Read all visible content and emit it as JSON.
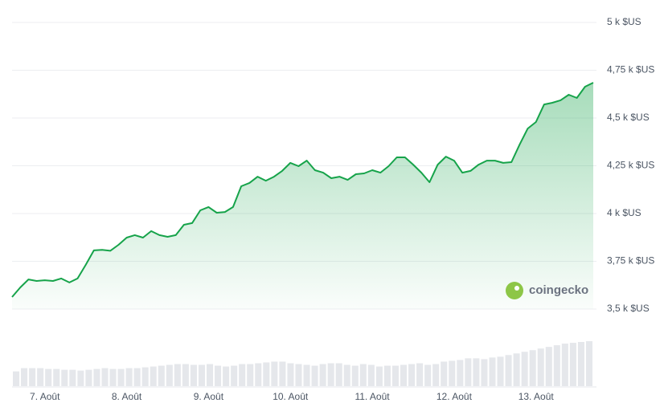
{
  "chart_data": [
    {
      "type": "line",
      "watermark": "coingecko",
      "color": "#16a34a",
      "grid": true,
      "x": [
        6.6,
        6.7,
        6.8,
        6.9,
        7.0,
        7.1,
        7.2,
        7.3,
        7.4,
        7.5,
        7.6,
        7.7,
        7.8,
        7.9,
        8.0,
        8.1,
        8.2,
        8.3,
        8.4,
        8.5,
        8.6,
        8.7,
        8.8,
        8.9,
        9.0,
        9.1,
        9.2,
        9.3,
        9.4,
        9.5,
        9.6,
        9.7,
        9.8,
        9.9,
        10.0,
        10.1,
        10.2,
        10.3,
        10.4,
        10.5,
        10.6,
        10.7,
        10.8,
        10.9,
        11.0,
        11.1,
        11.2,
        11.3,
        11.4,
        11.5,
        11.6,
        11.7,
        11.8,
        11.9,
        12.0,
        12.1,
        12.2,
        12.3,
        12.4,
        12.5,
        12.6,
        12.7,
        12.8,
        12.9,
        13.0,
        13.1,
        13.2,
        13.3,
        13.4,
        13.5,
        13.6,
        13.7
      ],
      "values": [
        3563,
        3613,
        3655,
        3647,
        3651,
        3647,
        3660,
        3639,
        3660,
        3731,
        3807,
        3810,
        3805,
        3836,
        3874,
        3887,
        3874,
        3908,
        3887,
        3878,
        3887,
        3941,
        3950,
        4017,
        4034,
        4004,
        4008,
        4034,
        4143,
        4160,
        4193,
        4172,
        4193,
        4223,
        4265,
        4248,
        4277,
        4227,
        4214,
        4185,
        4193,
        4176,
        4206,
        4210,
        4227,
        4214,
        4248,
        4294,
        4294,
        4256,
        4214,
        4164,
        4256,
        4298,
        4277,
        4214,
        4223,
        4256,
        4277,
        4277,
        4265,
        4269,
        4361,
        4445,
        4479,
        4571,
        4580,
        4593,
        4622,
        4605,
        4664,
        4685
      ],
      "xlim": [
        6.6,
        13.7
      ],
      "xticks": [
        {
          "value": 7,
          "label": "7. Août"
        },
        {
          "value": 8,
          "label": "8. Août"
        },
        {
          "value": 9,
          "label": "9. Août"
        },
        {
          "value": 10,
          "label": "10. Août"
        },
        {
          "value": 11,
          "label": "11. Août"
        },
        {
          "value": 12,
          "label": "12. Août"
        },
        {
          "value": 13,
          "label": "13. Août"
        }
      ],
      "ylim": [
        3500,
        5000
      ],
      "yticks": [
        {
          "value": 3500,
          "label": "3,5 k $US"
        },
        {
          "value": 3750,
          "label": "3,75 k $US"
        },
        {
          "value": 4000,
          "label": "4 k $US"
        },
        {
          "value": 4250,
          "label": "4,25 k $US"
        },
        {
          "value": 4500,
          "label": "4,5 k $US"
        },
        {
          "value": 4750,
          "label": "4,75 k $US"
        },
        {
          "value": 5000,
          "label": "5 k $US"
        }
      ]
    },
    {
      "type": "bar",
      "color": "#e5e7eb",
      "values": [
        18,
        22,
        22,
        22,
        21,
        21,
        20,
        20,
        19,
        20,
        21,
        22,
        21,
        21,
        22,
        22,
        23,
        24,
        25,
        26,
        27,
        27,
        26,
        26,
        27,
        25,
        24,
        25,
        27,
        27,
        28,
        29,
        30,
        30,
        28,
        27,
        26,
        25,
        27,
        28,
        28,
        26,
        25,
        27,
        26,
        24,
        25,
        25,
        26,
        27,
        28,
        26,
        27,
        30,
        31,
        32,
        34,
        34,
        33,
        35,
        36,
        38,
        40,
        42,
        44,
        46,
        48,
        50,
        52,
        53,
        54,
        55
      ]
    }
  ]
}
